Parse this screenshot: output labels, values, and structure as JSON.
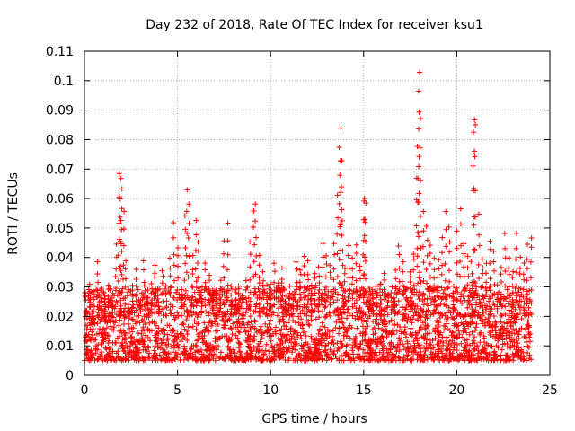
{
  "chart_data": {
    "type": "scatter",
    "title": "Day 232 of 2018, Rate Of TEC Index for receiver ksu1",
    "xlabel": "GPS time / hours",
    "ylabel": "ROTI / TECUs",
    "xlim": [
      0,
      25
    ],
    "ylim": [
      0,
      0.11
    ],
    "x_ticks": [
      0,
      5,
      10,
      15,
      20,
      25
    ],
    "x_tick_labels": [
      "0",
      "5",
      "10",
      "15",
      "20",
      "25"
    ],
    "y_ticks": [
      0,
      0.01,
      0.02,
      0.03,
      0.04,
      0.05,
      0.06,
      0.07,
      0.08,
      0.09,
      0.1,
      0.11
    ],
    "y_tick_labels": [
      "0",
      "0.01",
      "0.02",
      "0.03",
      "0.04",
      "0.05",
      "0.06",
      "0.07",
      "0.08",
      "0.09",
      "0.1",
      "0.11"
    ],
    "grid": true,
    "marker": "+",
    "color": "#ff0000",
    "series": [
      {
        "name": "ROTI",
        "x": [
          0.1,
          0.3,
          0.5,
          0.7,
          0.9,
          1.1,
          1.3,
          1.5,
          1.7,
          1.85,
          1.9,
          1.95,
          2.0,
          2.1,
          2.2,
          2.4,
          2.6,
          2.8,
          3.0,
          3.2,
          3.4,
          3.6,
          3.8,
          4.0,
          4.2,
          4.4,
          4.6,
          4.8,
          5.0,
          5.2,
          5.4,
          5.5,
          5.6,
          5.8,
          6.0,
          6.1,
          6.3,
          6.5,
          6.7,
          6.9,
          7.1,
          7.3,
          7.5,
          7.7,
          7.9,
          8.1,
          8.3,
          8.5,
          8.7,
          8.9,
          9.1,
          9.2,
          9.4,
          9.6,
          9.8,
          10.0,
          10.2,
          10.4,
          10.6,
          10.8,
          11.0,
          11.2,
          11.4,
          11.6,
          11.8,
          12.0,
          12.2,
          12.4,
          12.6,
          12.8,
          13.0,
          13.2,
          13.4,
          13.6,
          13.7,
          13.75,
          13.8,
          13.85,
          14.0,
          14.2,
          14.4,
          14.6,
          14.8,
          15.0,
          15.05,
          15.1,
          15.3,
          15.5,
          15.7,
          15.9,
          16.1,
          16.3,
          16.5,
          16.7,
          16.9,
          17.1,
          17.3,
          17.5,
          17.7,
          17.85,
          17.9,
          17.95,
          18.0,
          18.05,
          18.2,
          18.4,
          18.6,
          18.8,
          19.0,
          19.2,
          19.4,
          19.6,
          19.8,
          20.0,
          20.2,
          20.4,
          20.6,
          20.8,
          20.9,
          20.95,
          21.0,
          21.2,
          21.4,
          21.6,
          21.8,
          22.0,
          22.2,
          22.4,
          22.6,
          22.8,
          23.0,
          23.2,
          23.4,
          23.6,
          23.8,
          24.0
        ],
        "y": [
          0.022,
          0.03,
          0.018,
          0.038,
          0.026,
          0.02,
          0.03,
          0.025,
          0.045,
          0.052,
          0.069,
          0.067,
          0.063,
          0.055,
          0.038,
          0.022,
          0.03,
          0.035,
          0.025,
          0.038,
          0.028,
          0.032,
          0.038,
          0.024,
          0.035,
          0.03,
          0.04,
          0.052,
          0.044,
          0.03,
          0.055,
          0.062,
          0.058,
          0.04,
          0.053,
          0.046,
          0.03,
          0.038,
          0.034,
          0.028,
          0.025,
          0.032,
          0.045,
          0.051,
          0.03,
          0.025,
          0.03,
          0.028,
          0.032,
          0.045,
          0.056,
          0.059,
          0.04,
          0.035,
          0.03,
          0.03,
          0.038,
          0.032,
          0.036,
          0.025,
          0.03,
          0.028,
          0.038,
          0.036,
          0.04,
          0.038,
          0.03,
          0.035,
          0.036,
          0.044,
          0.04,
          0.038,
          0.045,
          0.061,
          0.078,
          0.083,
          0.073,
          0.052,
          0.036,
          0.044,
          0.04,
          0.045,
          0.038,
          0.059,
          0.06,
          0.058,
          0.03,
          0.028,
          0.03,
          0.032,
          0.034,
          0.028,
          0.03,
          0.035,
          0.044,
          0.038,
          0.03,
          0.036,
          0.042,
          0.067,
          0.077,
          0.097,
          0.102,
          0.088,
          0.055,
          0.05,
          0.045,
          0.04,
          0.04,
          0.046,
          0.056,
          0.051,
          0.03,
          0.048,
          0.057,
          0.045,
          0.04,
          0.038,
          0.082,
          0.086,
          0.085,
          0.054,
          0.04,
          0.038,
          0.046,
          0.042,
          0.03,
          0.036,
          0.048,
          0.04,
          0.035,
          0.048,
          0.04,
          0.038,
          0.044,
          0.047
        ],
        "baseline_band": [
          0.005,
          0.03
        ]
      }
    ]
  }
}
